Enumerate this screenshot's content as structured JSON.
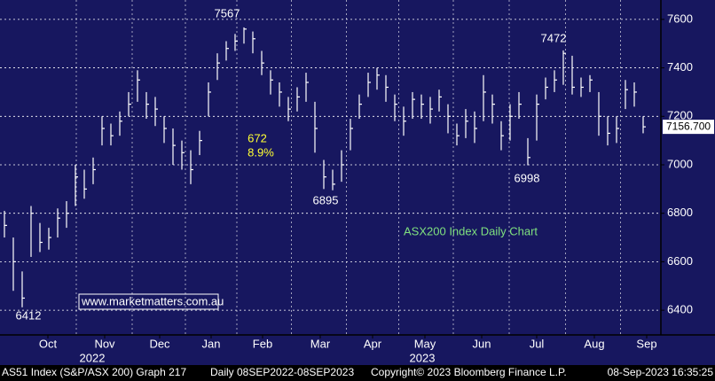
{
  "chart_data": {
    "type": "ohlc",
    "title": "ASX200 Index Daily Chart",
    "watermark": "www.marketmatters.com.au",
    "annotations": [
      "7567",
      "7472",
      "6895",
      "6998",
      "6412",
      "672",
      "8.9%"
    ],
    "high": [
      6810,
      6700,
      6560,
      6830,
      6760,
      6740,
      6820,
      6850,
      7000,
      6980,
      7030,
      7200,
      7170,
      7220,
      7300,
      7390,
      7300,
      7280,
      7200,
      7150,
      7100,
      7060,
      7140,
      7340,
      7460,
      7510,
      7540,
      7567,
      7550,
      7470,
      7390,
      7340,
      7280,
      7320,
      7380,
      7260,
      7020,
      6980,
      7060,
      7190,
      7290,
      7380,
      7400,
      7370,
      7290,
      7240,
      7300,
      7290,
      7280,
      7310,
      7250,
      7170,
      7230,
      7220,
      7370,
      7290,
      7180,
      7250,
      7300,
      7110,
      7290,
      7360,
      7390,
      7472,
      7450,
      7360,
      7370,
      7300,
      7200,
      7200,
      7350,
      7340,
      7200
    ],
    "low": [
      6700,
      6480,
      6412,
      6620,
      6640,
      6650,
      6700,
      6740,
      6830,
      6860,
      6920,
      7080,
      7080,
      7120,
      7200,
      7260,
      7190,
      7160,
      7090,
      7000,
      6980,
      6920,
      7040,
      7200,
      7350,
      7430,
      7470,
      7500,
      7460,
      7370,
      7290,
      7240,
      7180,
      7220,
      7260,
      7050,
      6900,
      6895,
      6930,
      7060,
      7190,
      7280,
      7310,
      7260,
      7180,
      7120,
      7190,
      7190,
      7170,
      7220,
      7130,
      7080,
      7110,
      7090,
      7180,
      7170,
      7060,
      7100,
      7190,
      6998,
      7100,
      7270,
      7300,
      7330,
      7290,
      7280,
      7300,
      7120,
      7080,
      7090,
      7230,
      7240,
      7130
    ],
    "close": [
      6750,
      6600,
      6450,
      6800,
      6680,
      6700,
      6780,
      6800,
      6950,
      6900,
      6980,
      7150,
      7120,
      7180,
      7250,
      7350,
      7250,
      7230,
      7150,
      7080,
      7050,
      6980,
      7100,
      7300,
      7420,
      7480,
      7510,
      7560,
      7520,
      7420,
      7350,
      7300,
      7230,
      7280,
      7340,
      7150,
      6950,
      6920,
      7000,
      7150,
      7250,
      7340,
      7370,
      7320,
      7250,
      7180,
      7270,
      7250,
      7230,
      7280,
      7200,
      7120,
      7180,
      7150,
      7300,
      7250,
      7120,
      7200,
      7250,
      7030,
      7250,
      7320,
      7350,
      7460,
      7320,
      7320,
      7350,
      7200,
      7130,
      7150,
      7310,
      7300,
      7156.7
    ],
    "last_price": {
      "value": 7156.7,
      "label": "7156.700"
    },
    "color": "#ffffff",
    "xlim": [
      -0.5,
      74
    ],
    "xticks": [
      {
        "value": 4.9,
        "label": "Oct"
      },
      {
        "value": 11.3,
        "label": "Nov"
      },
      {
        "value": 17.5,
        "label": "Dec"
      },
      {
        "value": 23.3,
        "label": "Jan"
      },
      {
        "value": 29.1,
        "label": "Feb"
      },
      {
        "value": 35.6,
        "label": "Mar"
      },
      {
        "value": 41.5,
        "label": "Apr"
      },
      {
        "value": 47.4,
        "label": "May"
      },
      {
        "value": 53.8,
        "label": "Jun"
      },
      {
        "value": 60,
        "label": "Jul"
      },
      {
        "value": 66.5,
        "label": "Aug"
      },
      {
        "value": 72.4,
        "label": "Sep"
      }
    ],
    "year_labels": [
      {
        "value": 9.9,
        "label": "2022"
      },
      {
        "value": 47.1,
        "label": "2023"
      }
    ],
    "ylim": [
      6298,
      7680
    ],
    "yticks": [
      6400,
      6600,
      6800,
      7000,
      7200,
      7400,
      7600
    ],
    "grid": true
  },
  "footer": {
    "security": "AS51 Index (S&P/ASX 200) Graph 217",
    "range": "Daily 08SEP2022-08SEP2023",
    "copyright": "Copyright© 2023 Bloomberg Finance L.P.",
    "timestamp": "08-Sep-2023 16:35:25"
  }
}
